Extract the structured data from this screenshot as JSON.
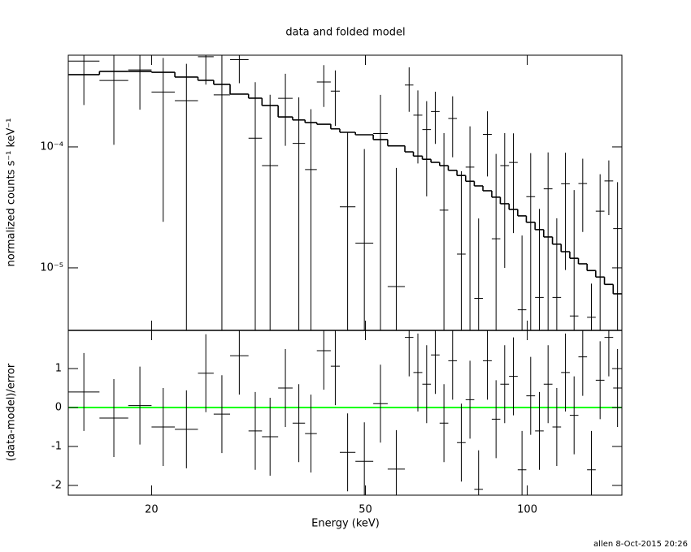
{
  "chart_data": {
    "type": "errorbar",
    "title": "data and folded model",
    "xlabel": "Energy (keV)",
    "xscale": "log",
    "xlim": [
      14,
      150
    ],
    "xticks": [
      20,
      50,
      100
    ],
    "footer": "allen  8-Oct-2015 20:26",
    "bins": [
      14.0,
      16.0,
      18.1,
      20.0,
      22.1,
      24.4,
      26.1,
      28.0,
      30.3,
      32.1,
      34.4,
      36.6,
      38.6,
      40.6,
      43.1,
      44.8,
      47.9,
      51.7,
      55.0,
      59.2,
      61.4,
      63.8,
      66.2,
      68.7,
      71.3,
      74.0,
      76.8,
      79.7,
      82.7,
      85.9,
      89.1,
      92.5,
      96.0,
      99.6,
      103.4,
      107.3,
      111.4,
      115.6,
      120.0,
      124.5,
      129.2,
      134.1,
      139.2,
      144.5,
      150.0
    ],
    "top": {
      "ylabel": "normalized counts s⁻¹ keV⁻¹",
      "yscale": "log",
      "ylim": [
        3.04e-06,
        0.000573
      ],
      "yticks": [
        {
          "value": 0.0001,
          "label": "10⁻⁴"
        },
        {
          "value": 1e-05,
          "label": "10⁻⁵"
        }
      ],
      "data": {
        "color": "#000000",
        "values": [
          0.000512,
          0.000354,
          0.000433,
          0.000284,
          0.000241,
          0.000557,
          0.000269,
          0.000526,
          0.000118,
          7e-05,
          0.000252,
          0.000107,
          6.5e-05,
          0.000344,
          0.000289,
          3.2e-05,
          1.6e-05,
          0.000129,
          7e-06,
          0.000325,
          0.000183,
          0.000139,
          0.000196,
          3e-05,
          0.000172,
          1.3e-05,
          6.8e-05,
          5.6e-06,
          0.000127,
          1.74e-05,
          7e-05,
          7.44e-05,
          4.5e-06,
          3.88e-05,
          5.7e-06,
          4.5e-05,
          5.7e-06,
          4.96e-05,
          4e-06,
          4.98e-05,
          3.9e-06,
          2.94e-05,
          5.23e-05,
          2.11e-05
        ],
        "errors": [
          0.00029,
          0.00025,
          0.00023,
          0.00026,
          0.000245,
          0.00023,
          0.00035,
          0.00019,
          0.000225,
          0.0002,
          0.00015,
          0.00015,
          0.00014,
          0.00013,
          0.00014,
          0.0001,
          8e-05,
          0.00014,
          6e-05,
          0.00013,
          0.00011,
          0.0001,
          9e-05,
          0.0001,
          9e-05,
          5e-05,
          8e-05,
          2e-05,
          7e-05,
          7e-05,
          6e-05,
          5.5e-05,
          1.4e-05,
          5e-05,
          2.5e-05,
          4.5e-05,
          2e-05,
          4e-05,
          4e-05,
          3e-05,
          3.5e-06,
          3e-05,
          2.5e-05,
          3e-05
        ]
      },
      "model": {
        "color": "#000000",
        "values": [
          0.000396,
          0.000421,
          0.000421,
          0.000414,
          0.000378,
          0.000355,
          0.000329,
          0.000273,
          0.000253,
          0.00022,
          0.000177,
          0.000167,
          0.000159,
          0.000154,
          0.000141,
          0.000132,
          0.000126,
          0.000115,
          0.000102,
          9.1e-05,
          8.4e-05,
          7.9e-05,
          7.45e-05,
          7e-05,
          6.4e-05,
          5.8e-05,
          5.2e-05,
          4.76e-05,
          4.34e-05,
          3.84e-05,
          3.39e-05,
          3.04e-05,
          2.69e-05,
          2.38e-05,
          2.07e-05,
          1.8e-05,
          1.57e-05,
          1.36e-05,
          1.2e-05,
          1.08e-05,
          9.5e-06,
          8.4e-06,
          7.3e-06,
          6.1e-06
        ]
      }
    },
    "bottom": {
      "ylabel": "(data-model)/error",
      "ylim": [
        -2.25,
        1.98
      ],
      "yticks": [
        -2,
        -1,
        0,
        1
      ],
      "reference_line": 0,
      "reference_color": "#00ff00",
      "residuals": {
        "color": "#000000",
        "values": [
          0.4,
          -0.27,
          0.05,
          -0.5,
          -0.56,
          0.88,
          -0.17,
          1.33,
          -0.6,
          -0.75,
          0.5,
          -0.4,
          -0.67,
          1.46,
          1.06,
          -1.15,
          -1.38,
          0.1,
          -1.58,
          1.8,
          0.9,
          0.6,
          1.35,
          -0.4,
          1.2,
          -0.9,
          0.2,
          -2.1,
          1.2,
          -0.3,
          0.6,
          0.8,
          -1.6,
          0.3,
          -0.6,
          0.6,
          -0.5,
          0.9,
          -0.2,
          1.3,
          -1.6,
          0.7,
          1.8,
          0.5
        ],
        "errors": [
          1,
          1,
          1,
          1,
          1,
          1,
          1,
          1,
          1,
          1,
          1,
          1,
          1,
          1,
          1,
          1,
          1,
          1,
          1,
          1,
          1,
          1,
          1,
          1,
          1,
          1,
          1,
          1,
          1,
          1,
          1,
          1,
          1,
          1,
          1,
          1,
          1,
          1,
          1,
          1,
          1,
          1,
          1,
          1
        ]
      }
    }
  }
}
